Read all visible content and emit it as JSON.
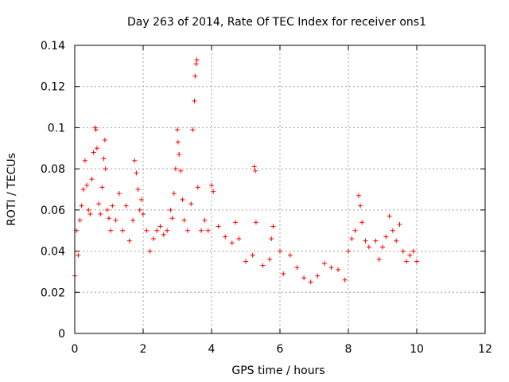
{
  "chart_data": {
    "type": "scatter",
    "title": "Day 263 of 2014, Rate Of TEC Index for receiver ons1",
    "xlabel": "GPS time / hours",
    "ylabel": "ROTI / TECUs",
    "xlim": [
      0,
      12
    ],
    "ylim": [
      0,
      0.14
    ],
    "x_ticks": [
      0,
      2,
      4,
      6,
      8,
      10,
      12
    ],
    "y_ticks": [
      0,
      0.02,
      0.04,
      0.06,
      0.08,
      0.1,
      0.12,
      0.14
    ],
    "x_tick_labels": [
      "0",
      "2",
      "4",
      "6",
      "8",
      "10",
      "12"
    ],
    "y_tick_labels": [
      "0",
      "0.02",
      "0.04",
      "0.06",
      "0.08",
      "0.1",
      "0.12",
      "0.14"
    ],
    "grid": true,
    "marker": "+",
    "marker_color": "#ff0000",
    "series": [
      {
        "name": "ROTI ons1",
        "points": [
          [
            0.0,
            0.028
          ],
          [
            0.05,
            0.05
          ],
          [
            0.1,
            0.038
          ],
          [
            0.15,
            0.055
          ],
          [
            0.2,
            0.062
          ],
          [
            0.25,
            0.07
          ],
          [
            0.3,
            0.084
          ],
          [
            0.35,
            0.072
          ],
          [
            0.4,
            0.06
          ],
          [
            0.45,
            0.058
          ],
          [
            0.5,
            0.075
          ],
          [
            0.55,
            0.088
          ],
          [
            0.6,
            0.1
          ],
          [
            0.62,
            0.099
          ],
          [
            0.65,
            0.09
          ],
          [
            0.7,
            0.063
          ],
          [
            0.75,
            0.058
          ],
          [
            0.8,
            0.071
          ],
          [
            0.85,
            0.085
          ],
          [
            0.88,
            0.094
          ],
          [
            0.9,
            0.08
          ],
          [
            0.95,
            0.06
          ],
          [
            1.0,
            0.056
          ],
          [
            1.05,
            0.05
          ],
          [
            1.1,
            0.062
          ],
          [
            1.2,
            0.055
          ],
          [
            1.3,
            0.068
          ],
          [
            1.4,
            0.05
          ],
          [
            1.5,
            0.062
          ],
          [
            1.6,
            0.045
          ],
          [
            1.7,
            0.055
          ],
          [
            1.75,
            0.084
          ],
          [
            1.8,
            0.078
          ],
          [
            1.85,
            0.07
          ],
          [
            1.9,
            0.06
          ],
          [
            1.95,
            0.065
          ],
          [
            2.0,
            0.058
          ],
          [
            2.1,
            0.05
          ],
          [
            2.2,
            0.04
          ],
          [
            2.3,
            0.046
          ],
          [
            2.4,
            0.05
          ],
          [
            2.5,
            0.052
          ],
          [
            2.6,
            0.048
          ],
          [
            2.7,
            0.05
          ],
          [
            2.8,
            0.06
          ],
          [
            2.85,
            0.056
          ],
          [
            2.9,
            0.068
          ],
          [
            2.95,
            0.08
          ],
          [
            3.0,
            0.099
          ],
          [
            3.02,
            0.093
          ],
          [
            3.05,
            0.087
          ],
          [
            3.1,
            0.079
          ],
          [
            3.15,
            0.065
          ],
          [
            3.2,
            0.055
          ],
          [
            3.3,
            0.05
          ],
          [
            3.4,
            0.063
          ],
          [
            3.45,
            0.099
          ],
          [
            3.5,
            0.113
          ],
          [
            3.52,
            0.125
          ],
          [
            3.55,
            0.131
          ],
          [
            3.57,
            0.133
          ],
          [
            3.6,
            0.071
          ],
          [
            3.7,
            0.05
          ],
          [
            3.8,
            0.055
          ],
          [
            3.9,
            0.05
          ],
          [
            4.0,
            0.072
          ],
          [
            4.05,
            0.069
          ],
          [
            4.2,
            0.052
          ],
          [
            4.4,
            0.047
          ],
          [
            4.6,
            0.044
          ],
          [
            4.7,
            0.054
          ],
          [
            4.8,
            0.046
          ],
          [
            5.0,
            0.035
          ],
          [
            5.2,
            0.038
          ],
          [
            5.25,
            0.081
          ],
          [
            5.28,
            0.079
          ],
          [
            5.3,
            0.054
          ],
          [
            5.5,
            0.033
          ],
          [
            5.7,
            0.036
          ],
          [
            5.75,
            0.046
          ],
          [
            5.8,
            0.052
          ],
          [
            6.0,
            0.04
          ],
          [
            6.1,
            0.029
          ],
          [
            6.3,
            0.038
          ],
          [
            6.5,
            0.032
          ],
          [
            6.7,
            0.027
          ],
          [
            6.9,
            0.025
          ],
          [
            7.1,
            0.028
          ],
          [
            7.3,
            0.034
          ],
          [
            7.5,
            0.032
          ],
          [
            7.7,
            0.031
          ],
          [
            7.9,
            0.026
          ],
          [
            8.0,
            0.04
          ],
          [
            8.1,
            0.046
          ],
          [
            8.2,
            0.05
          ],
          [
            8.3,
            0.067
          ],
          [
            8.35,
            0.062
          ],
          [
            8.4,
            0.054
          ],
          [
            8.5,
            0.045
          ],
          [
            8.6,
            0.042
          ],
          [
            8.8,
            0.045
          ],
          [
            8.9,
            0.036
          ],
          [
            9.0,
            0.042
          ],
          [
            9.1,
            0.047
          ],
          [
            9.2,
            0.057
          ],
          [
            9.3,
            0.05
          ],
          [
            9.4,
            0.045
          ],
          [
            9.5,
            0.053
          ],
          [
            9.6,
            0.04
          ],
          [
            9.7,
            0.035
          ],
          [
            9.8,
            0.038
          ],
          [
            9.9,
            0.04
          ],
          [
            10.0,
            0.035
          ]
        ]
      }
    ]
  }
}
